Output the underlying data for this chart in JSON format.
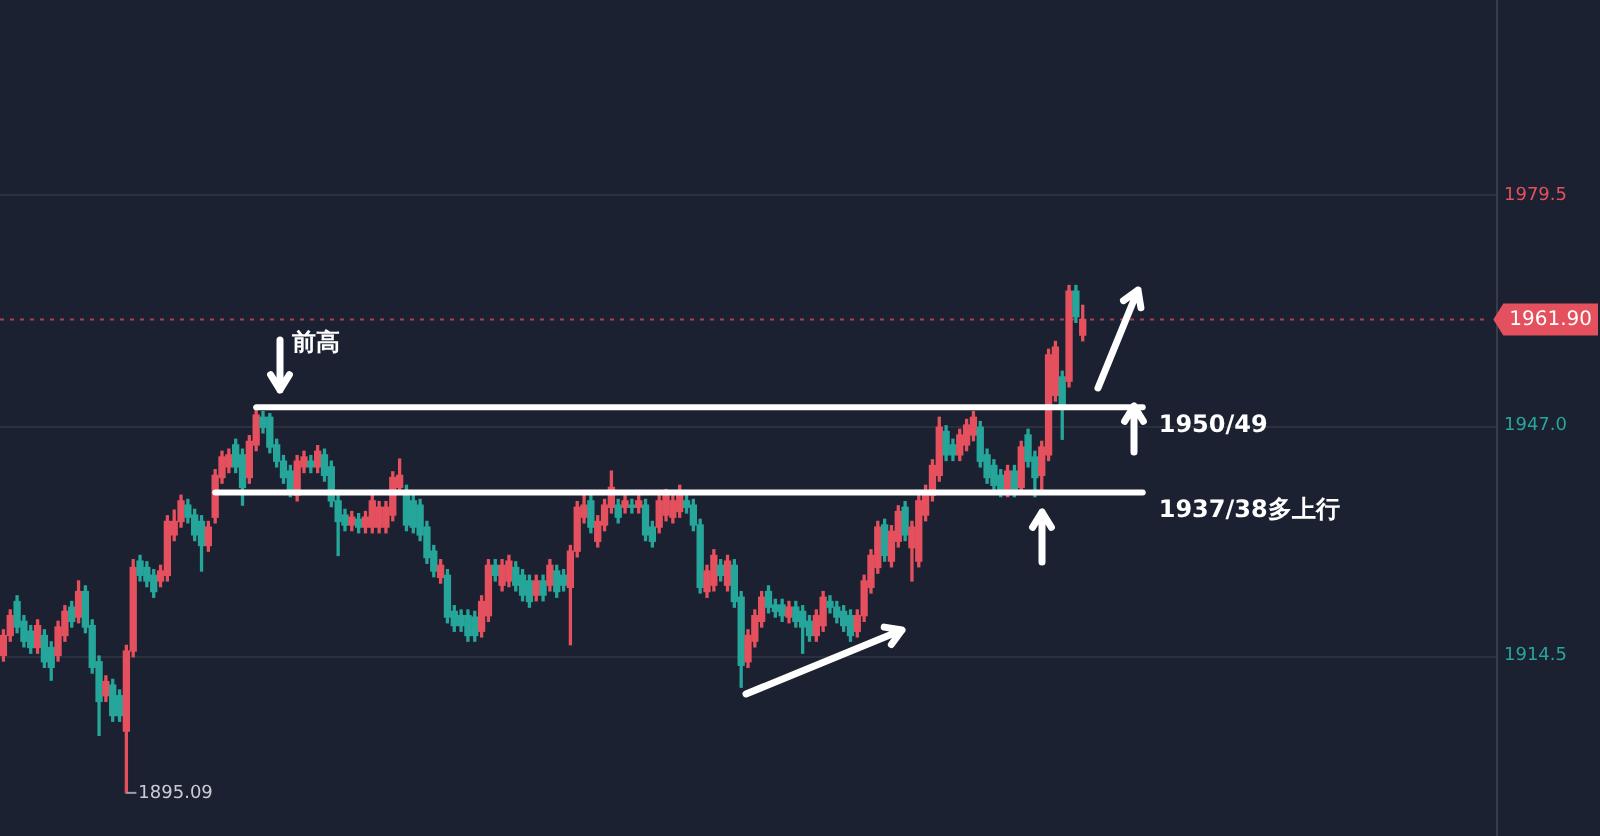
{
  "chart_data": {
    "type": "candlestick",
    "categories": [
      null,
      null,
      null,
      null,
      null,
      null,
      null,
      null,
      null,
      null,
      null,
      null,
      null,
      null,
      null,
      null,
      null,
      null,
      null,
      null,
      null,
      null,
      null,
      null,
      null,
      null,
      null,
      null,
      null,
      null,
      null,
      null,
      null,
      null,
      null,
      null,
      null,
      null,
      null,
      null,
      null,
      null,
      null,
      null,
      null,
      null,
      null,
      null,
      null,
      null,
      null,
      null,
      null,
      null,
      null,
      null,
      null,
      null,
      null,
      null,
      null,
      null,
      null,
      null,
      null,
      null,
      null,
      null,
      null,
      null,
      null,
      null,
      null,
      null,
      null,
      null,
      null,
      null,
      null,
      null,
      null,
      null,
      null,
      null,
      null,
      null,
      null,
      null,
      null,
      null,
      null,
      null,
      null,
      null,
      null,
      null,
      null,
      null,
      null,
      null,
      null,
      null,
      null,
      null,
      null,
      null,
      null,
      null,
      null,
      null,
      null,
      null,
      null,
      null,
      null,
      null,
      null,
      null,
      null,
      null,
      null,
      null,
      null,
      null,
      null,
      null,
      null,
      null,
      null,
      null,
      null,
      null,
      null,
      null,
      null,
      null,
      null,
      null,
      null,
      null,
      null,
      null,
      null,
      null,
      null,
      null,
      null,
      null,
      null,
      null,
      null,
      null,
      null,
      null,
      null,
      null,
      null,
      null,
      null,
      null,
      null,
      null,
      null,
      null,
      null,
      null,
      null,
      null,
      null,
      null,
      null,
      null,
      null,
      null,
      null,
      null,
      null,
      null,
      null,
      null,
      null,
      null,
      null,
      null,
      null,
      null,
      null,
      null,
      null,
      null,
      null,
      null,
      null,
      null,
      null,
      null,
      null,
      null,
      null,
      null,
      null,
      null,
      null,
      null,
      null,
      null,
      null,
      null,
      null,
      null,
      null,
      null,
      null,
      null,
      null,
      null,
      null,
      null,
      null
    ],
    "ohlc": [
      [
        1914.5,
        1918.1,
        1913.7,
        1917.3
      ],
      [
        1917.3,
        1920.9,
        1916.5,
        1920.1
      ],
      [
        1922.1,
        1922.9,
        1917.7,
        1918.5
      ],
      [
        1919.3,
        1920.1,
        1915.7,
        1916.5
      ],
      [
        1917.9,
        1918.7,
        1914.8,
        1915.6
      ],
      [
        1915.6,
        1919.5,
        1914.8,
        1918.7
      ],
      [
        1917.3,
        1918.1,
        1912.8,
        1913.6
      ],
      [
        1915.6,
        1916.4,
        1911.0,
        1912.8
      ],
      [
        1914.5,
        1919.3,
        1913.7,
        1918.5
      ],
      [
        1917.3,
        1921.5,
        1916.5,
        1920.7
      ],
      [
        1921.3,
        1922.1,
        1918.5,
        1919.3
      ],
      [
        1919.9,
        1925.0,
        1919.1,
        1923.5
      ],
      [
        1923.5,
        1924.3,
        1917.7,
        1918.5
      ],
      [
        1918.7,
        1919.5,
        1912.0,
        1912.8
      ],
      [
        1913.6,
        1914.4,
        1903.2,
        1908.0
      ],
      [
        1908.8,
        1911.6,
        1908.0,
        1910.8
      ],
      [
        1910.3,
        1911.1,
        1905.2,
        1906.0
      ],
      [
        1908.8,
        1909.6,
        1905.2,
        1906.0
      ],
      [
        1903.8,
        1915.9,
        1895.09,
        1915.1
      ],
      [
        1915.1,
        1928.0,
        1914.3,
        1926.9
      ],
      [
        1927.8,
        1928.6,
        1925.0,
        1925.8
      ],
      [
        1926.9,
        1927.7,
        1924.2,
        1925.0
      ],
      [
        1925.8,
        1926.6,
        1922.7,
        1923.5
      ],
      [
        1925.0,
        1927.2,
        1924.2,
        1926.4
      ],
      [
        1925.8,
        1934.2,
        1925.0,
        1933.4
      ],
      [
        1931.5,
        1935.0,
        1930.7,
        1933.4
      ],
      [
        1933.4,
        1937.1,
        1932.6,
        1936.3
      ],
      [
        1935.7,
        1936.5,
        1933.2,
        1934.0
      ],
      [
        1934.3,
        1935.1,
        1930.7,
        1931.5
      ],
      [
        1933.4,
        1934.2,
        1926.4,
        1930.0
      ],
      [
        1930.0,
        1933.4,
        1929.2,
        1932.6
      ],
      [
        1934.0,
        1940.7,
        1933.2,
        1939.9
      ],
      [
        1939.6,
        1943.3,
        1938.8,
        1942.5
      ],
      [
        1941.1,
        1943.6,
        1940.3,
        1942.8
      ],
      [
        1944.2,
        1945.0,
        1940.3,
        1941.1
      ],
      [
        1942.8,
        1943.6,
        1935.7,
        1938.2
      ],
      [
        1939.6,
        1945.5,
        1938.8,
        1944.7
      ],
      [
        1944.2,
        1949.5,
        1943.4,
        1948.4
      ],
      [
        1948.1,
        1948.9,
        1945.9,
        1946.7
      ],
      [
        1948.1,
        1948.6,
        1943.1,
        1943.9
      ],
      [
        1944.2,
        1945.0,
        1941.1,
        1941.9
      ],
      [
        1941.9,
        1942.7,
        1938.8,
        1939.6
      ],
      [
        1940.5,
        1941.3,
        1936.9,
        1937.7
      ],
      [
        1937.1,
        1942.7,
        1936.3,
        1941.9
      ],
      [
        1941.1,
        1943.3,
        1940.3,
        1942.5
      ],
      [
        1941.9,
        1942.7,
        1940.3,
        1941.1
      ],
      [
        1941.1,
        1944.1,
        1940.3,
        1943.3
      ],
      [
        1942.8,
        1943.6,
        1939.1,
        1939.9
      ],
      [
        1941.1,
        1941.9,
        1935.5,
        1936.3
      ],
      [
        1936.3,
        1937.1,
        1928.6,
        1933.4
      ],
      [
        1934.3,
        1935.1,
        1932.1,
        1932.9
      ],
      [
        1932.9,
        1934.8,
        1932.1,
        1934.0
      ],
      [
        1933.7,
        1934.5,
        1931.8,
        1932.6
      ],
      [
        1932.6,
        1934.8,
        1931.8,
        1934.0
      ],
      [
        1932.6,
        1937.1,
        1931.8,
        1936.3
      ],
      [
        1932.6,
        1936.2,
        1931.8,
        1935.4
      ],
      [
        1932.6,
        1936.2,
        1931.8,
        1935.4
      ],
      [
        1934.3,
        1940.4,
        1933.5,
        1939.6
      ],
      [
        1938.2,
        1942.2,
        1937.4,
        1939.9
      ],
      [
        1937.7,
        1938.5,
        1932.1,
        1932.9
      ],
      [
        1936.3,
        1937.1,
        1931.8,
        1932.6
      ],
      [
        1935.7,
        1936.5,
        1930.7,
        1931.5
      ],
      [
        1932.6,
        1933.4,
        1927.5,
        1928.3
      ],
      [
        1929.2,
        1930.0,
        1925.6,
        1926.4
      ],
      [
        1925.5,
        1928.0,
        1924.7,
        1927.2
      ],
      [
        1925.8,
        1926.6,
        1919.1,
        1919.9
      ],
      [
        1920.7,
        1921.5,
        1917.9,
        1918.7
      ],
      [
        1920.1,
        1920.9,
        1917.9,
        1918.7
      ],
      [
        1920.1,
        1920.9,
        1916.5,
        1917.3
      ],
      [
        1919.9,
        1920.7,
        1916.5,
        1917.3
      ],
      [
        1917.9,
        1922.9,
        1917.1,
        1922.1
      ],
      [
        1920.1,
        1928.0,
        1919.3,
        1927.2
      ],
      [
        1927.2,
        1928.0,
        1925.0,
        1925.8
      ],
      [
        1924.4,
        1928.0,
        1923.6,
        1927.2
      ],
      [
        1925.0,
        1928.6,
        1924.2,
        1927.8
      ],
      [
        1926.9,
        1927.7,
        1923.6,
        1924.4
      ],
      [
        1925.8,
        1926.6,
        1922.2,
        1923.0
      ],
      [
        1925.0,
        1925.8,
        1921.3,
        1922.1
      ],
      [
        1923.0,
        1925.8,
        1922.2,
        1925.0
      ],
      [
        1925.0,
        1925.8,
        1922.2,
        1923.0
      ],
      [
        1924.4,
        1928.0,
        1923.6,
        1927.2
      ],
      [
        1926.4,
        1927.2,
        1922.7,
        1923.5
      ],
      [
        1925.8,
        1926.6,
        1923.6,
        1924.4
      ],
      [
        1924.1,
        1930.0,
        1916.0,
        1929.2
      ],
      [
        1929.2,
        1936.2,
        1928.4,
        1935.4
      ],
      [
        1934.0,
        1937.1,
        1933.2,
        1935.7
      ],
      [
        1936.3,
        1937.7,
        1931.8,
        1932.6
      ],
      [
        1930.6,
        1934.2,
        1929.8,
        1933.4
      ],
      [
        1932.9,
        1936.5,
        1932.1,
        1935.7
      ],
      [
        1935.4,
        1940.5,
        1934.6,
        1938.2
      ],
      [
        1935.7,
        1936.5,
        1933.2,
        1934.0
      ],
      [
        1935.4,
        1937.1,
        1934.6,
        1936.3
      ],
      [
        1935.7,
        1936.5,
        1934.6,
        1935.4
      ],
      [
        1935.4,
        1937.1,
        1934.6,
        1936.3
      ],
      [
        1935.7,
        1936.5,
        1930.7,
        1931.5
      ],
      [
        1932.6,
        1933.4,
        1929.8,
        1930.6
      ],
      [
        1932.6,
        1937.1,
        1931.8,
        1936.3
      ],
      [
        1934.3,
        1937.9,
        1933.5,
        1937.1
      ],
      [
        1934.0,
        1937.1,
        1933.2,
        1936.3
      ],
      [
        1934.8,
        1938.5,
        1934.0,
        1937.7
      ],
      [
        1936.3,
        1937.1,
        1934.6,
        1935.4
      ],
      [
        1935.7,
        1936.5,
        1932.1,
        1932.9
      ],
      [
        1932.9,
        1933.7,
        1923.3,
        1924.1
      ],
      [
        1923.5,
        1927.2,
        1922.7,
        1926.4
      ],
      [
        1924.4,
        1929.4,
        1923.6,
        1928.6
      ],
      [
        1927.2,
        1928.0,
        1925.0,
        1925.8
      ],
      [
        1924.4,
        1928.6,
        1923.6,
        1927.8
      ],
      [
        1927.2,
        1928.0,
        1921.3,
        1922.1
      ],
      [
        1922.7,
        1923.5,
        1910.0,
        1913.1
      ],
      [
        1913.6,
        1918.1,
        1912.8,
        1917.3
      ],
      [
        1916.5,
        1920.9,
        1915.7,
        1920.1
      ],
      [
        1919.3,
        1923.5,
        1918.5,
        1922.7
      ],
      [
        1923.5,
        1924.3,
        1920.5,
        1921.3
      ],
      [
        1921.6,
        1922.4,
        1919.9,
        1920.7
      ],
      [
        1921.6,
        1922.4,
        1919.3,
        1920.1
      ],
      [
        1919.9,
        1922.1,
        1919.1,
        1921.3
      ],
      [
        1921.3,
        1922.1,
        1918.5,
        1919.3
      ],
      [
        1920.7,
        1921.5,
        1914.8,
        1918.5
      ],
      [
        1919.3,
        1920.1,
        1916.5,
        1917.3
      ],
      [
        1917.3,
        1920.9,
        1916.5,
        1920.1
      ],
      [
        1918.7,
        1923.5,
        1917.9,
        1922.7
      ],
      [
        1922.1,
        1922.9,
        1920.5,
        1921.3
      ],
      [
        1921.3,
        1922.1,
        1919.1,
        1919.9
      ],
      [
        1920.7,
        1921.5,
        1917.9,
        1918.7
      ],
      [
        1920.1,
        1920.9,
        1916.5,
        1917.3
      ],
      [
        1917.9,
        1920.9,
        1917.1,
        1920.1
      ],
      [
        1920.1,
        1925.8,
        1919.3,
        1925.0
      ],
      [
        1924.1,
        1929.4,
        1923.3,
        1928.6
      ],
      [
        1926.9,
        1933.4,
        1926.1,
        1932.6
      ],
      [
        1932.9,
        1933.7,
        1927.8,
        1928.6
      ],
      [
        1927.8,
        1932.8,
        1927.0,
        1932.0
      ],
      [
        1930.6,
        1935.6,
        1929.8,
        1934.8
      ],
      [
        1935.4,
        1936.2,
        1930.7,
        1931.5
      ],
      [
        1929.7,
        1933.4,
        1925.0,
        1932.6
      ],
      [
        1927.8,
        1937.1,
        1927.0,
        1936.3
      ],
      [
        1934.3,
        1938.5,
        1933.5,
        1937.7
      ],
      [
        1937.1,
        1942.1,
        1936.3,
        1941.3
      ],
      [
        1939.9,
        1948.1,
        1939.1,
        1946.7
      ],
      [
        1946.1,
        1946.9,
        1942.0,
        1942.8
      ],
      [
        1944.2,
        1945.0,
        1942.0,
        1942.8
      ],
      [
        1942.8,
        1946.4,
        1942.0,
        1945.6
      ],
      [
        1944.2,
        1947.8,
        1943.4,
        1947.0
      ],
      [
        1945.6,
        1948.9,
        1944.8,
        1948.1
      ],
      [
        1946.7,
        1947.5,
        1941.1,
        1941.9
      ],
      [
        1942.8,
        1943.6,
        1938.8,
        1939.6
      ],
      [
        1941.3,
        1942.1,
        1937.7,
        1938.5
      ],
      [
        1939.9,
        1940.7,
        1936.9,
        1937.7
      ],
      [
        1937.7,
        1941.3,
        1936.9,
        1940.5
      ],
      [
        1940.5,
        1941.3,
        1936.9,
        1937.7
      ],
      [
        1938.2,
        1944.7,
        1937.4,
        1943.9
      ],
      [
        1945.6,
        1946.4,
        1941.1,
        1941.9
      ],
      [
        1942.5,
        1943.3,
        1936.9,
        1939.6
      ],
      [
        1939.9,
        1944.7,
        1937.7,
        1943.9
      ],
      [
        1942.8,
        1957.7,
        1942.0,
        1956.9
      ],
      [
        1951.2,
        1958.8,
        1950.4,
        1958.0
      ],
      [
        1953.8,
        1954.6,
        1945.0,
        1949.5
      ],
      [
        1953.2,
        1966.7,
        1952.4,
        1965.9
      ],
      [
        1965.9,
        1966.7,
        1961.5,
        1962.3
      ],
      [
        1959.7,
        1963.9,
        1958.9,
        1961.9
      ],
      null,
      null,
      null,
      null,
      null,
      null,
      null,
      null,
      null,
      null,
      null,
      null,
      null,
      null,
      null,
      null,
      null,
      null,
      null,
      null,
      null,
      null,
      null,
      null,
      null,
      null,
      null,
      null,
      null,
      null,
      null,
      null,
      null,
      null,
      null,
      null,
      null,
      null,
      null,
      null,
      null,
      null,
      null,
      null,
      null,
      null,
      null,
      null,
      null,
      null,
      null,
      null,
      null,
      null,
      null,
      null,
      null,
      null,
      null,
      null
    ],
    "ylim": [
      1889,
      2007
    ],
    "yticks": [
      1979.5,
      {
        "value": 1947,
        "label": "1947.0"
      },
      1914.5
    ],
    "tick_labels": "y",
    "grid": "y",
    "ref_lines": [
      {
        "axis": "y",
        "value": 1961.9,
        "label": "1961.90",
        "color": "#e5505e",
        "line_style": "dashed"
      },
      {
        "axis": "y",
        "value": 1949.5,
        "label": "1950/49",
        "color": "#ffffff",
        "line_style": "solid"
      },
      {
        "axis": "y",
        "value": 1937.5,
        "label": "1937/38多上行",
        "color": "#ffffff",
        "line_style": "solid"
      }
    ],
    "annotations": [
      {
        "text": "前高",
        "y": 1949.5
      },
      "1895.09"
    ]
  }
}
